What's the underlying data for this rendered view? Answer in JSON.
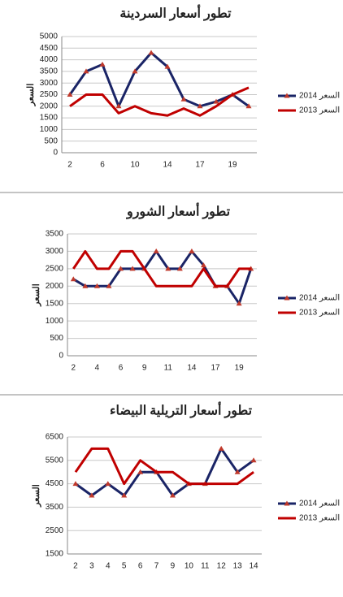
{
  "chart_data": [
    {
      "type": "line",
      "title": "تطور أسعار السردينة",
      "ylabel": "السعر",
      "categories": [
        "2",
        null,
        "6",
        null,
        "10",
        null,
        "14",
        null,
        "17",
        null,
        "19",
        null
      ],
      "series": [
        {
          "name": "2014 السعر",
          "color": "#1a2466",
          "values": [
            2500,
            3500,
            3800,
            2000,
            3500,
            4300,
            3700,
            2300,
            2000,
            2200,
            2500,
            2000
          ]
        },
        {
          "name": "2013 السعر",
          "color": "#c00000",
          "values": [
            2000,
            2500,
            2500,
            1700,
            2000,
            1700,
            1600,
            1900,
            1600,
            2000,
            2500,
            2800
          ]
        }
      ],
      "ylim": [
        0,
        5000
      ],
      "yticks": [
        0,
        500,
        1000,
        1500,
        2000,
        2500,
        3000,
        3500,
        4000,
        4500,
        5000
      ],
      "grid": true,
      "legend": "right"
    },
    {
      "type": "line",
      "title": "تطور أسعار الشورو",
      "ylabel": "السعر",
      "categories": [
        "2",
        null,
        "4",
        null,
        "6",
        null,
        "9",
        null,
        "11",
        null,
        "14",
        null,
        "17",
        null,
        "19",
        null
      ],
      "series": [
        {
          "name": "2014 السعر",
          "color": "#1a2466",
          "values": [
            2200,
            2000,
            2000,
            2000,
            2500,
            2500,
            2500,
            3000,
            2500,
            2500,
            3000,
            2600,
            2000,
            2000,
            1500,
            2500
          ]
        },
        {
          "name": "2013 السعر",
          "color": "#c00000",
          "values": [
            2500,
            3000,
            2500,
            2500,
            3000,
            3000,
            2500,
            2000,
            2000,
            2000,
            2000,
            2500,
            2000,
            2000,
            2500,
            2500
          ]
        }
      ],
      "ylim": [
        0,
        3500
      ],
      "yticks": [
        0,
        500,
        1000,
        1500,
        2000,
        2500,
        3000,
        3500
      ],
      "grid": true,
      "legend": "right"
    },
    {
      "type": "line",
      "title": "تطور أسعار التريلية البيضاء",
      "ylabel": "السعر",
      "categories": [
        "2",
        "3",
        "4",
        "5",
        "6",
        "7",
        "9",
        "10",
        "11",
        "12",
        "13",
        "14"
      ],
      "series": [
        {
          "name": "2014 السعر",
          "color": "#1a2466",
          "values": [
            4500,
            4000,
            4500,
            4000,
            5000,
            5000,
            4000,
            4500,
            4500,
            6000,
            5000,
            5500
          ]
        },
        {
          "name": "2013 السعر",
          "color": "#c00000",
          "values": [
            5000,
            6000,
            6000,
            4500,
            5500,
            5000,
            5000,
            4500,
            4500,
            4500,
            4500,
            5000
          ]
        }
      ],
      "ylim": [
        1500,
        6500
      ],
      "yticks": [
        1500,
        2500,
        3500,
        4500,
        5500,
        6500
      ],
      "grid": true,
      "legend": "right"
    }
  ]
}
